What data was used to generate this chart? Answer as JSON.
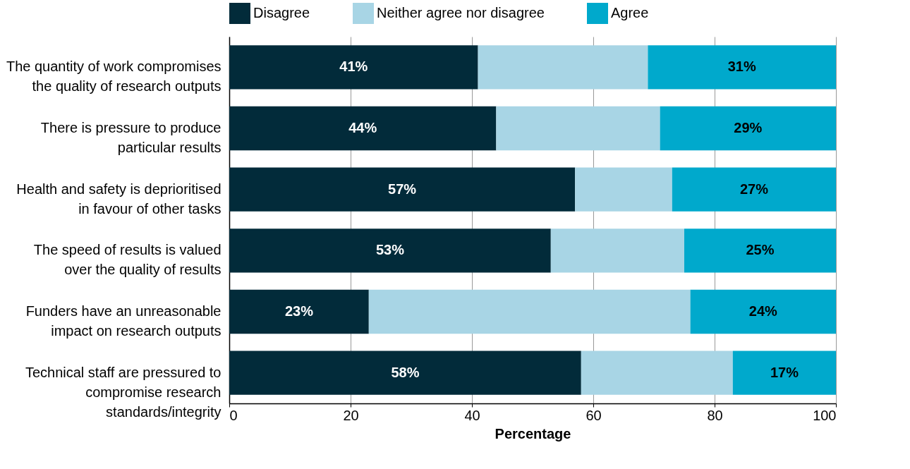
{
  "chart_data": {
    "type": "bar",
    "orientation": "horizontal",
    "stacked": true,
    "categories": [
      "The quantity of work compromises the quality of research outputs",
      "There is pressure to produce particular results",
      "Health and safety is deprioritised in favour of other tasks",
      "The speed of results is valued over the quality of results",
      "Funders have an unreasonable impact on research outputs",
      "Technical staff are pressured to compromise research standards/integrity"
    ],
    "series": [
      {
        "name": "Disagree",
        "color": "#022b3a",
        "values": [
          41,
          44,
          57,
          53,
          23,
          58
        ],
        "value_labels": [
          "41%",
          "44%",
          "57%",
          "53%",
          "23%",
          "58%"
        ]
      },
      {
        "name": "Neither agree nor disagree",
        "color": "#a8d5e5",
        "values": [
          28,
          27,
          16,
          22,
          53,
          25
        ],
        "value_labels": [
          null,
          null,
          null,
          null,
          null,
          null
        ]
      },
      {
        "name": "Agree",
        "color": "#00a9cc",
        "values": [
          31,
          29,
          27,
          25,
          24,
          17
        ],
        "value_labels": [
          "31%",
          "29%",
          "27%",
          "25%",
          "24%",
          "17%"
        ]
      }
    ],
    "xlim": [
      0,
      100
    ],
    "xticks": [
      0,
      20,
      40,
      60,
      80,
      100
    ],
    "xlabel": "Percentage",
    "grid": "x",
    "legend": "top"
  }
}
